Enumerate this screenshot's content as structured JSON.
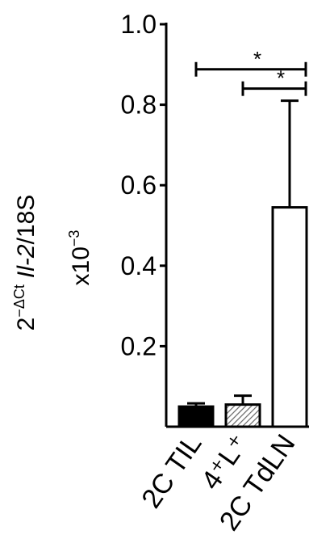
{
  "chart_data": {
    "type": "bar",
    "categories": [
      "2C TIL",
      "4⁺L⁺",
      "2C TdLN"
    ],
    "values": [
      0.05,
      0.055,
      0.545
    ],
    "errors": [
      0.008,
      0.022,
      0.265
    ],
    "fills": [
      "solid",
      "hatched",
      "open"
    ],
    "ylabel_line1": "2",
    "ylabel_sup": "−ΔCt",
    "ylabel_italic": "Il-2",
    "ylabel_rest": "/18S",
    "ylabel_line2": "x10",
    "ylabel_line2_sup": "−3",
    "yticks": [
      {
        "value": 0.2,
        "label": "0.2"
      },
      {
        "value": 0.4,
        "label": "0.4"
      },
      {
        "value": 0.6,
        "label": "0.6"
      },
      {
        "value": 0.8,
        "label": "0.8"
      },
      {
        "value": 1.0,
        "label": "1.0"
      }
    ],
    "ylim": [
      0,
      1.0
    ],
    "grid": false,
    "significance": [
      {
        "from": 0,
        "to": 2,
        "value": 0.888,
        "label": "*"
      },
      {
        "from": 1,
        "to": 2,
        "value": 0.84,
        "label": "*"
      }
    ],
    "colors": {
      "axis": "#000000",
      "bar_solid": "#000000",
      "bar_open": "#ffffff",
      "hatch": "#666666"
    }
  }
}
